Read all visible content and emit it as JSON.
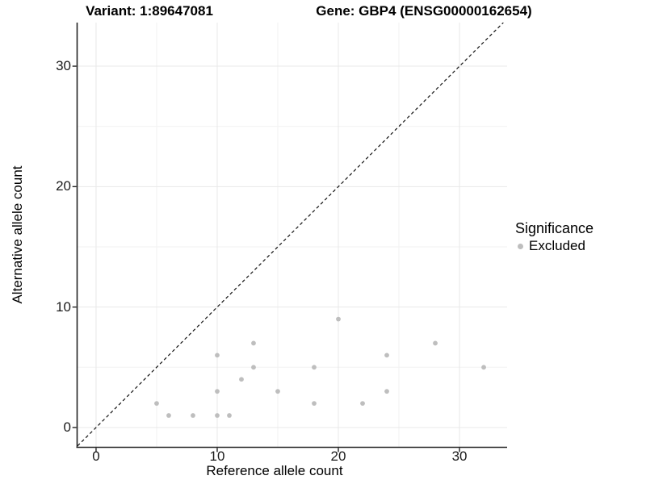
{
  "chart_data": {
    "type": "scatter",
    "title_left": "Variant: 1:89647081",
    "title_right": "Gene: GBP4 (ENSG00000162654)",
    "xlabel": "Reference allele count",
    "ylabel": "Alternative allele count",
    "xlim": [
      -1.53,
      33.93
    ],
    "ylim": [
      -1.61,
      33.62
    ],
    "x_ticks": [
      0,
      10,
      20,
      30
    ],
    "y_ticks": [
      0,
      10,
      20,
      30
    ],
    "x_minor_ticks": [
      5,
      15,
      25
    ],
    "y_minor_ticks": [
      5,
      15,
      25
    ],
    "grid": true,
    "identity_line": {
      "style": "dashed",
      "color": "#111111",
      "from": -1.53,
      "to": 33.62
    },
    "series": [
      {
        "name": "Excluded",
        "color": "#bebebe",
        "points": [
          [
            5,
            2
          ],
          [
            6,
            1
          ],
          [
            8,
            1
          ],
          [
            10,
            1
          ],
          [
            10,
            3
          ],
          [
            10,
            6
          ],
          [
            11,
            1
          ],
          [
            12,
            4
          ],
          [
            13,
            5
          ],
          [
            13,
            7
          ],
          [
            15,
            3
          ],
          [
            18,
            2
          ],
          [
            18,
            5
          ],
          [
            20,
            9
          ],
          [
            22,
            2
          ],
          [
            24,
            3
          ],
          [
            24,
            6
          ],
          [
            28,
            7
          ],
          [
            32,
            5
          ]
        ]
      }
    ],
    "legend": {
      "title": "Significance",
      "position": "right",
      "items": [
        {
          "label": "Excluded",
          "color": "#bebebe"
        }
      ]
    },
    "colors": {
      "background": "#ffffff",
      "point": "#bebebe",
      "grid_major": "#e8e8e8",
      "grid_minor": "#f2f2f2",
      "axis": "#222222",
      "tick": "#222222",
      "identity_line": "#111111",
      "text": "#000000"
    }
  }
}
